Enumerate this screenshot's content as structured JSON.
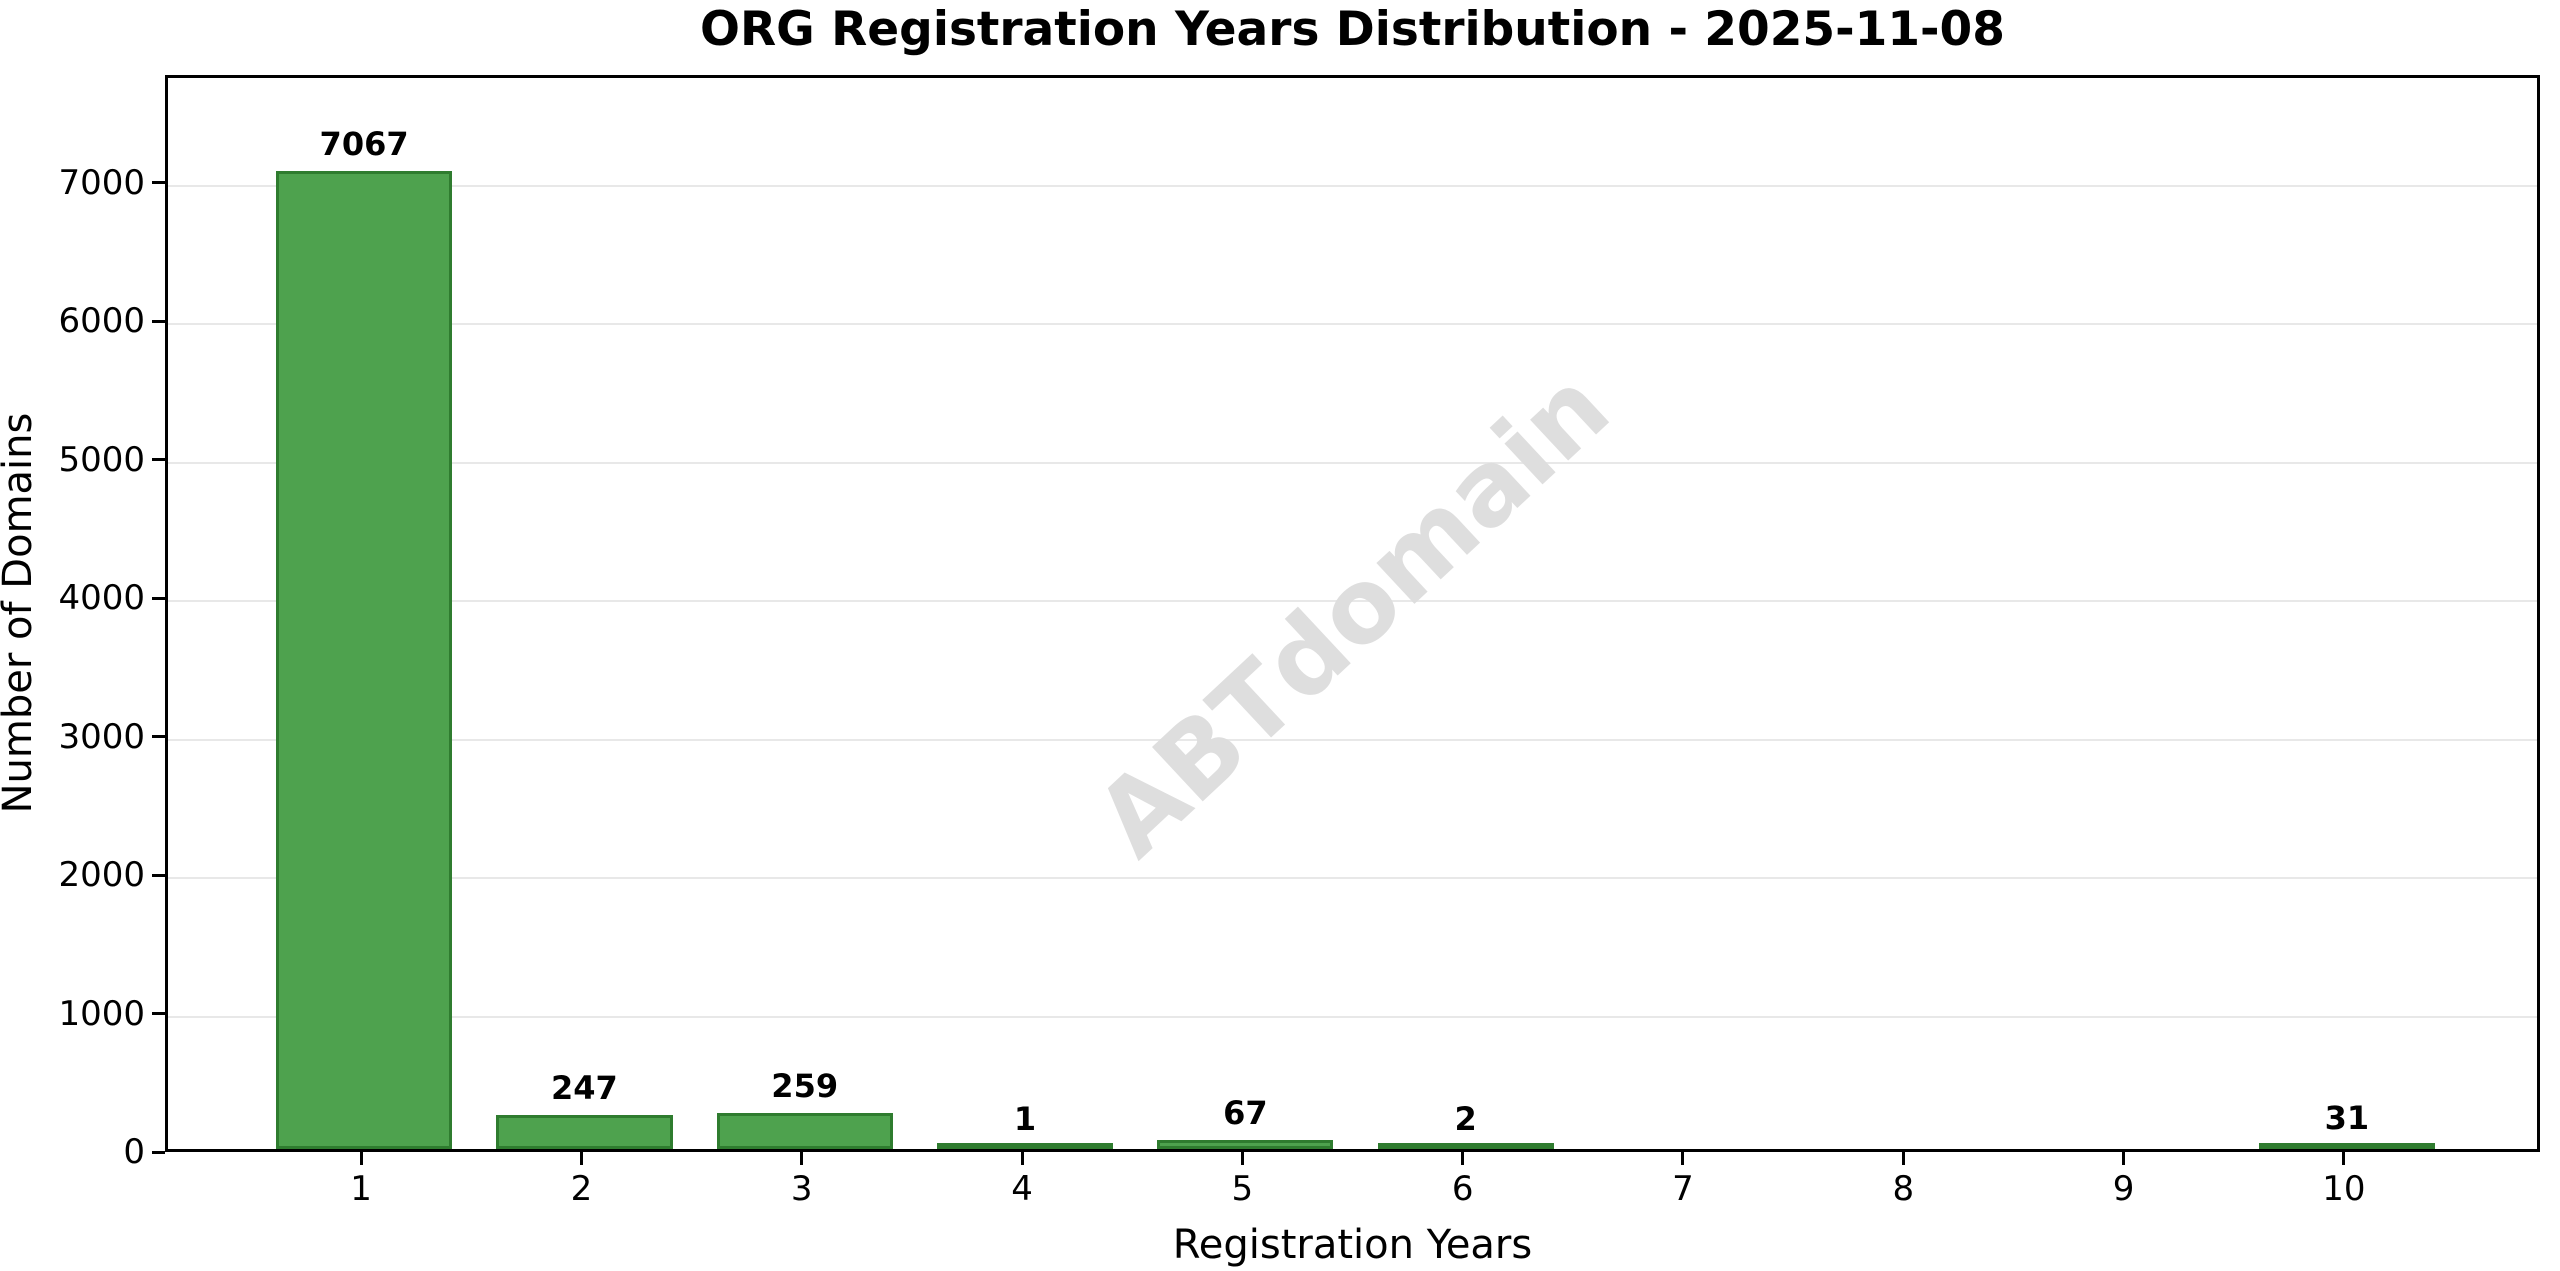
{
  "chart_data": {
    "type": "bar",
    "title": "ORG Registration Years Distribution - 2025-11-08",
    "xlabel": "Registration Years",
    "ylabel": "Number of Domains",
    "categories": [
      "1",
      "2",
      "3",
      "4",
      "5",
      "6",
      "7",
      "8",
      "9",
      "10"
    ],
    "values": [
      7067,
      247,
      259,
      1,
      67,
      2,
      0,
      0,
      0,
      31
    ],
    "bar_labels": [
      "7067",
      "247",
      "259",
      "1",
      "67",
      "2",
      "",
      "",
      "",
      "31"
    ],
    "yticks": [
      0,
      1000,
      2000,
      3000,
      4000,
      5000,
      6000,
      7000
    ],
    "ylim": [
      0,
      7780
    ],
    "xlim": [
      0.11,
      10.89
    ],
    "grid": "horizontal-only",
    "legend": "none",
    "bar_color": "#4ea24e",
    "bar_edge_color": "#2f7c2f",
    "gridline_color": "#e8e8e8",
    "axis_color": "#000000",
    "watermark_text": "ABTdomain",
    "watermark_color": "#dedede"
  }
}
